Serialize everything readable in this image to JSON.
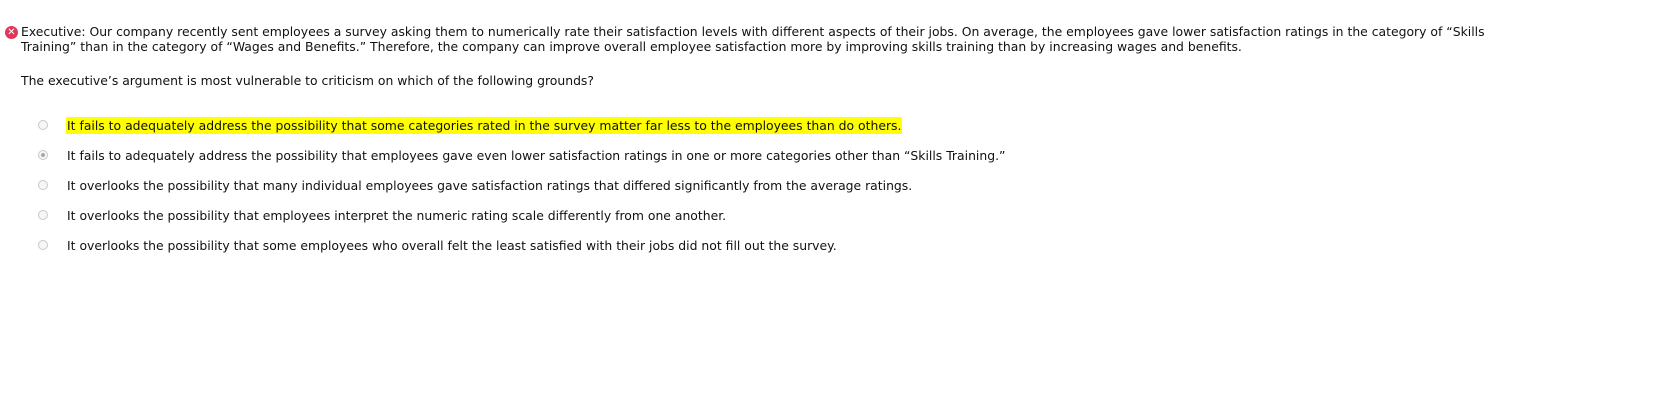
{
  "status_icon": "error-x-icon",
  "stem": "Executive: Our company recently sent employees a survey asking them to numerically rate their satisfaction levels with different aspects of their jobs. On average, the employees gave lower satisfaction ratings in the category of “Skills Training” than in the category of “Wages and Benefits.” Therefore, the company can improve overall employee satisfaction more by improving skills training than by increasing wages and benefits.",
  "question": "The executive’s argument is most vulnerable to criticism on which of the following grounds?",
  "highlight_color": "#ffff00",
  "options": [
    {
      "label": "It fails to adequately address the possibility that some categories rated in the survey matter far less to the employees than do others.",
      "selected": false,
      "highlighted": true
    },
    {
      "label": "It fails to adequately address the possibility that employees gave even lower satisfaction ratings in one or more categories other than “Skills Training.”",
      "selected": true,
      "highlighted": false
    },
    {
      "label": "It overlooks the possibility that many individual employees gave satisfaction ratings that differed significantly from the average ratings.",
      "selected": false,
      "highlighted": false
    },
    {
      "label": "It overlooks the possibility that employees interpret the numeric rating scale differently from one another.",
      "selected": false,
      "highlighted": false
    },
    {
      "label": "It overlooks the possibility that some employees who overall felt the least satisfied with their jobs did not fill out the survey.",
      "selected": false,
      "highlighted": false
    }
  ]
}
